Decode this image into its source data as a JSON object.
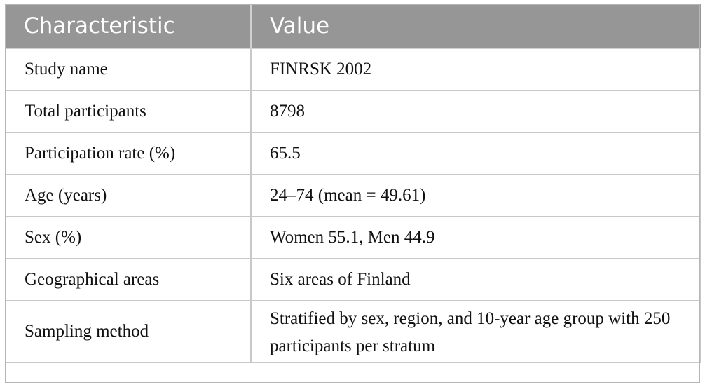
{
  "table": {
    "headers": [
      "Characteristic",
      "Value"
    ],
    "rows": [
      {
        "characteristic": "Study name",
        "value": "FINRSK 2002"
      },
      {
        "characteristic": "Total participants",
        "value": "8798"
      },
      {
        "characteristic": "Participation rate (%)",
        "value": "65.5"
      },
      {
        "characteristic": "Age (years)",
        "value": "24–74 (mean = 49.61)"
      },
      {
        "characteristic": "Sex (%)",
        "value": "Women 55.1, Men 44.9"
      },
      {
        "characteristic": "Geographical areas",
        "value": "Six areas of Finland"
      },
      {
        "characteristic": "Sampling method",
        "value": "Stratified by sex, region, and 10-year age group with 250 participants per stratum"
      }
    ]
  }
}
